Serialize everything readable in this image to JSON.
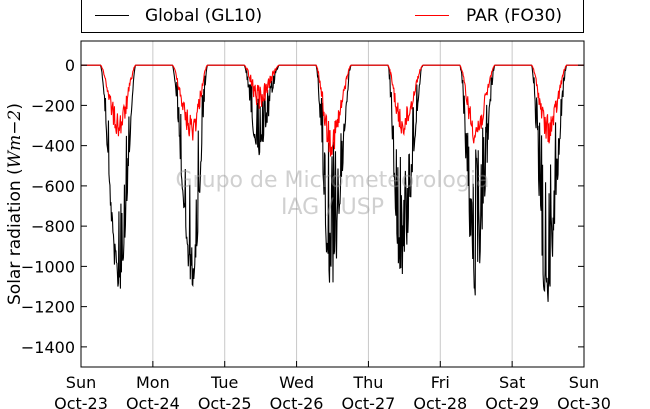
{
  "chart_data": {
    "type": "line",
    "ylabel": "Solar radiation (Wm−2)",
    "ylabel_math": "Wm−2",
    "ylim": [
      -1500,
      120
    ],
    "yticks": [
      0,
      -200,
      -400,
      -600,
      -800,
      -1000,
      -1200,
      -1400
    ],
    "xticks": [
      {
        "day": "Sun",
        "date": "Oct-23"
      },
      {
        "day": "Mon",
        "date": "Oct-24"
      },
      {
        "day": "Tue",
        "date": "Oct-25"
      },
      {
        "day": "Wed",
        "date": "Oct-26"
      },
      {
        "day": "Thu",
        "date": "Oct-27"
      },
      {
        "day": "Fri",
        "date": "Oct-28"
      },
      {
        "day": "Sat",
        "date": "Oct-29"
      },
      {
        "day": "Sun",
        "date": "Oct-30"
      }
    ],
    "x_grid": true,
    "legend_position": "top",
    "series": [
      {
        "name": "Global (GL10)",
        "color": "#000000",
        "daily_peak_min": [
          -1110,
          -1075,
          -440,
          -1110,
          -1040,
          -1140,
          -1175
        ],
        "daily_peak_time": [
          0.53,
          0.55,
          0.47,
          0.48,
          0.45,
          0.49,
          0.48
        ]
      },
      {
        "name": "PAR (FO30)",
        "color": "#ff0000",
        "daily_peak_min": [
          -350,
          -365,
          -200,
          -430,
          -345,
          -380,
          -375
        ],
        "daily_peak_time": [
          0.53,
          0.54,
          0.48,
          0.48,
          0.47,
          0.49,
          0.5
        ]
      }
    ]
  },
  "watermark": {
    "line1": "Grupo de Micrometeorologia",
    "line2": "IAG / USP"
  }
}
